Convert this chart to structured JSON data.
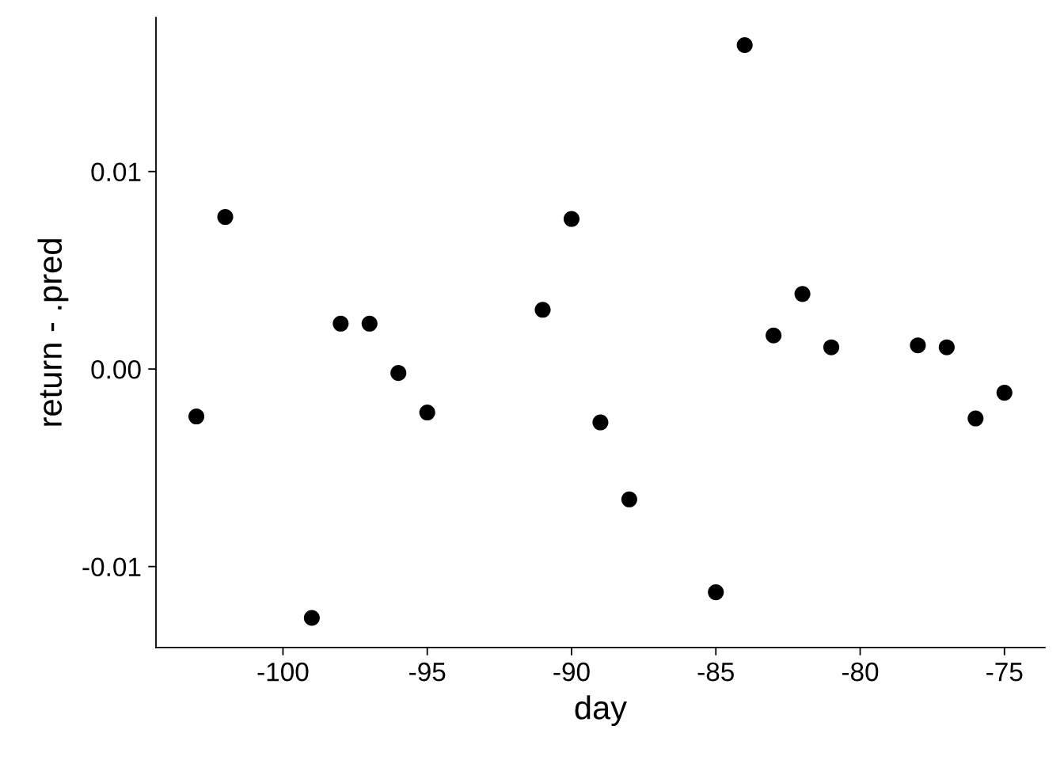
{
  "chart_data": {
    "type": "scatter",
    "xlabel": "day",
    "ylabel": "return - .pred",
    "x": [
      -103,
      -102,
      -99,
      -98,
      -97,
      -96,
      -95,
      -91,
      -90,
      -89,
      -88,
      -85,
      -84,
      -83,
      -82,
      -81,
      -78,
      -77,
      -76,
      -75
    ],
    "series": [
      {
        "color": "#000000",
        "values": [
          -0.0024,
          0.0077,
          -0.0126,
          0.0023,
          0.0023,
          -0.0002,
          -0.0022,
          0.003,
          0.0076,
          -0.0027,
          -0.0066,
          -0.0113,
          0.0164,
          0.0017,
          0.0038,
          0.0011,
          0.0012,
          0.0011,
          -0.0025,
          -0.0012
        ]
      }
    ],
    "xlim": [
      -104.4,
      -73.6
    ],
    "xticks": [
      -100,
      -95,
      -90,
      -85,
      -80,
      -75
    ],
    "ylim": [
      -0.0141,
      0.0178
    ],
    "yticks": [
      -0.01,
      {
        "value": 0,
        "label": "0.00"
      },
      0.01
    ],
    "grid": false,
    "marker": "circle"
  }
}
